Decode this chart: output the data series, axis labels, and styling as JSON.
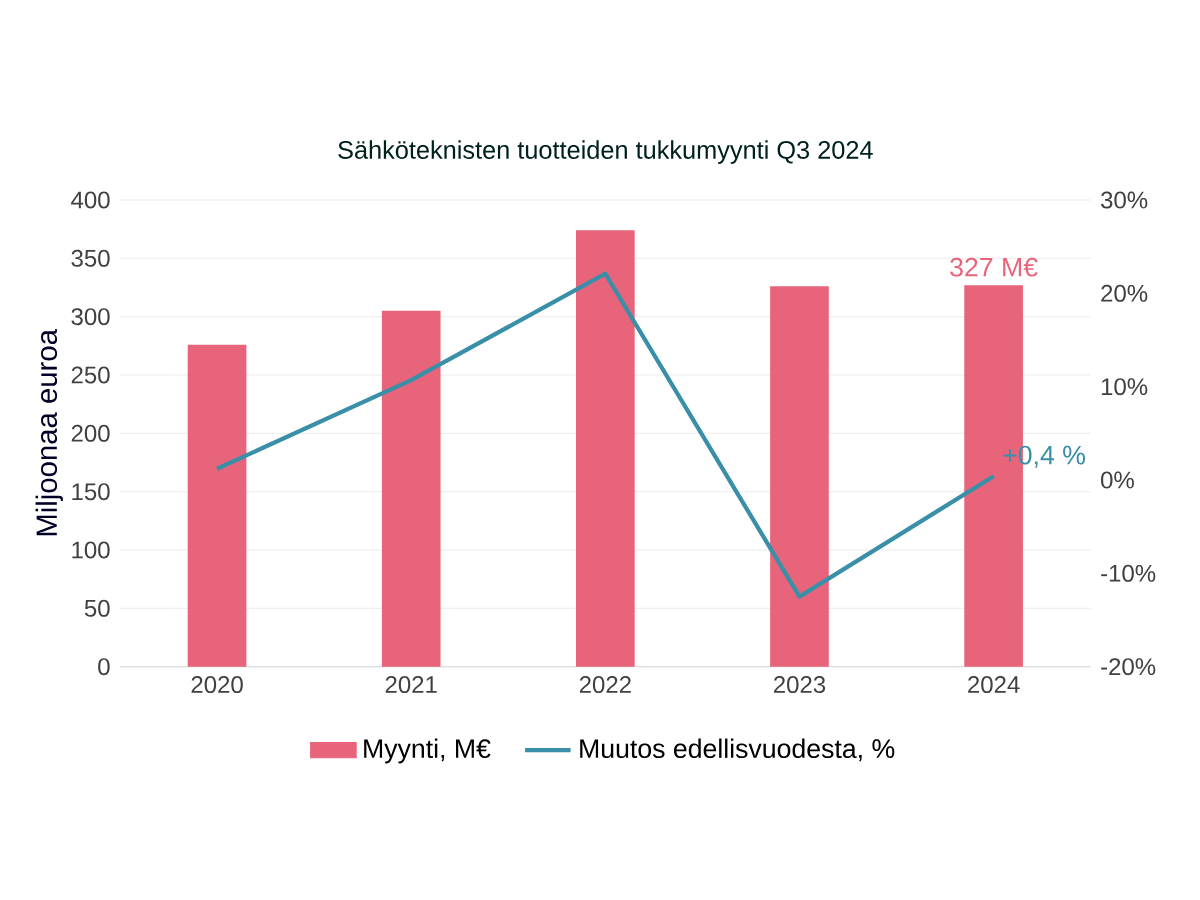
{
  "chart_data": {
    "type": "bar",
    "title": "Sähköteknisten tuotteiden tukkumyynti Q3 2024",
    "ylabel": "Miljoonaa euroa",
    "categories": [
      "2020",
      "2021",
      "2022",
      "2023",
      "2024"
    ],
    "series": [
      {
        "name": "Myynti, M€",
        "color": "#e8647a",
        "values": [
          276,
          305,
          374,
          326,
          327
        ],
        "value_labels": [
          null,
          null,
          null,
          null,
          "327 M€"
        ]
      },
      {
        "name": "Muutos edellisvuodesta, %",
        "type": "line",
        "axis": "y2",
        "color": "#3a8fa8",
        "values": [
          1.2,
          10.7,
          22.1,
          -12.5,
          0.4
        ],
        "value_labels": [
          null,
          null,
          null,
          null,
          "+0,4 %"
        ]
      }
    ],
    "ylim": [
      0,
      400
    ],
    "yticks": [
      0,
      50,
      100,
      150,
      200,
      250,
      300,
      350,
      400
    ],
    "y2lim": [
      -20,
      30
    ],
    "y2ticks": [
      {
        "value": -20,
        "label": "-20%"
      },
      {
        "value": -10,
        "label": "-10%"
      },
      {
        "value": 0,
        "label": "0%"
      },
      {
        "value": 10,
        "label": "10%"
      },
      {
        "value": 20,
        "label": "20%"
      },
      {
        "value": 30,
        "label": "30%"
      }
    ],
    "grid": "y",
    "legend": "bottom"
  }
}
